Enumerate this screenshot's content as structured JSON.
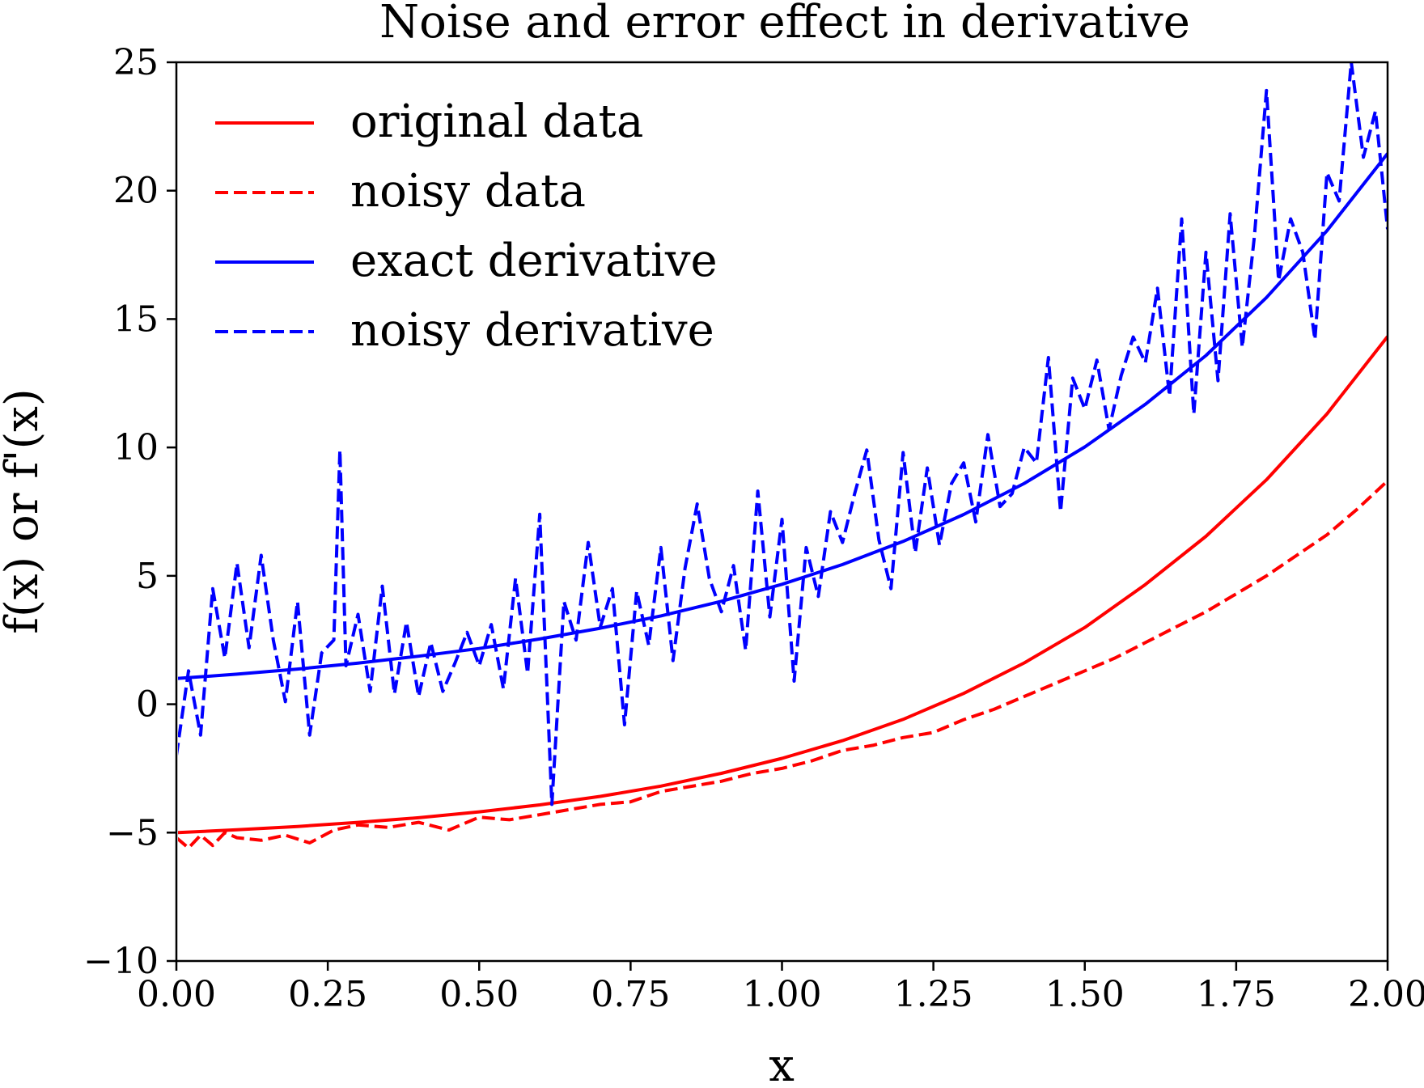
{
  "chart_data": {
    "type": "line",
    "title": "Noise and error effect in derivative",
    "xlabel": "x",
    "ylabel": "f(x) or f'(x)",
    "xlim": [
      0.0,
      2.0
    ],
    "ylim": [
      -10,
      25
    ],
    "xticks": [
      "0.00",
      "0.25",
      "0.50",
      "0.75",
      "1.00",
      "1.25",
      "1.50",
      "1.75",
      "2.00"
    ],
    "yticks": [
      "25",
      "20",
      "15",
      "10",
      "5",
      "0",
      "−5",
      "−10"
    ],
    "xtick_values": [
      0,
      0.25,
      0.5,
      0.75,
      1.0,
      1.25,
      1.5,
      1.75,
      2.0
    ],
    "ytick_values": [
      25,
      20,
      15,
      10,
      5,
      0,
      -5,
      -10
    ],
    "grid": false,
    "legend_position": "top-left",
    "series": [
      {
        "name": "original data",
        "color": "#ff0000",
        "style": "solid",
        "x": [
          0,
          0.1,
          0.2,
          0.3,
          0.4,
          0.5,
          0.6,
          0.7,
          0.8,
          0.9,
          1.0,
          1.1,
          1.2,
          1.3,
          1.4,
          1.5,
          1.6,
          1.7,
          1.8,
          1.9,
          2.0
        ],
        "y": [
          -5.0,
          -4.89,
          -4.76,
          -4.6,
          -4.42,
          -4.19,
          -3.92,
          -3.59,
          -3.19,
          -2.69,
          -2.11,
          -1.42,
          -0.59,
          0.42,
          1.61,
          2.99,
          4.66,
          6.54,
          8.74,
          11.31,
          14.32
        ]
      },
      {
        "name": "noisy data",
        "color": "#ff0000",
        "style": "dashed",
        "x": [
          0,
          0.02,
          0.04,
          0.06,
          0.08,
          0.1,
          0.14,
          0.18,
          0.22,
          0.26,
          0.3,
          0.35,
          0.4,
          0.45,
          0.5,
          0.55,
          0.6,
          0.65,
          0.7,
          0.75,
          0.8,
          0.85,
          0.9,
          0.95,
          1.0,
          1.05,
          1.1,
          1.15,
          1.2,
          1.25,
          1.3,
          1.35,
          1.4,
          1.45,
          1.5,
          1.55,
          1.6,
          1.65,
          1.7,
          1.75,
          1.8,
          1.85,
          1.9,
          1.95,
          2.0
        ],
        "y": [
          -5.2,
          -5.6,
          -5.1,
          -5.5,
          -5.0,
          -5.2,
          -5.3,
          -5.1,
          -5.4,
          -4.9,
          -4.7,
          -4.8,
          -4.6,
          -4.9,
          -4.4,
          -4.5,
          -4.3,
          -4.1,
          -3.9,
          -3.8,
          -3.4,
          -3.2,
          -3.0,
          -2.7,
          -2.5,
          -2.2,
          -1.8,
          -1.6,
          -1.3,
          -1.1,
          -0.6,
          -0.2,
          0.3,
          0.8,
          1.3,
          1.8,
          2.4,
          3.0,
          3.6,
          4.3,
          5.0,
          5.8,
          6.6,
          7.6,
          8.7
        ]
      },
      {
        "name": "exact derivative",
        "color": "#0000ff",
        "style": "solid",
        "x": [
          0,
          0.1,
          0.2,
          0.3,
          0.4,
          0.5,
          0.6,
          0.7,
          0.8,
          0.9,
          1.0,
          1.1,
          1.2,
          1.3,
          1.4,
          1.5,
          1.6,
          1.7,
          1.8,
          1.9,
          2.0
        ],
        "y": [
          1.0,
          1.17,
          1.37,
          1.6,
          1.87,
          2.17,
          2.54,
          2.96,
          3.44,
          4.01,
          4.67,
          5.44,
          6.34,
          7.39,
          8.6,
          10.02,
          11.68,
          13.58,
          15.84,
          18.44,
          21.45
        ]
      },
      {
        "name": "noisy derivative",
        "color": "#0000ff",
        "style": "dashed",
        "x": [
          0,
          0.02,
          0.04,
          0.06,
          0.08,
          0.1,
          0.12,
          0.14,
          0.16,
          0.18,
          0.2,
          0.22,
          0.24,
          0.26,
          0.27,
          0.28,
          0.3,
          0.32,
          0.34,
          0.36,
          0.38,
          0.4,
          0.42,
          0.44,
          0.46,
          0.48,
          0.5,
          0.52,
          0.54,
          0.56,
          0.58,
          0.6,
          0.62,
          0.64,
          0.66,
          0.68,
          0.7,
          0.72,
          0.74,
          0.76,
          0.78,
          0.8,
          0.82,
          0.84,
          0.86,
          0.88,
          0.9,
          0.92,
          0.94,
          0.96,
          0.98,
          1.0,
          1.02,
          1.04,
          1.06,
          1.08,
          1.1,
          1.12,
          1.14,
          1.16,
          1.18,
          1.2,
          1.22,
          1.24,
          1.26,
          1.28,
          1.3,
          1.32,
          1.34,
          1.36,
          1.38,
          1.4,
          1.42,
          1.44,
          1.46,
          1.48,
          1.5,
          1.52,
          1.54,
          1.56,
          1.58,
          1.6,
          1.62,
          1.64,
          1.66,
          1.68,
          1.7,
          1.72,
          1.74,
          1.76,
          1.78,
          1.8,
          1.82,
          1.84,
          1.86,
          1.88,
          1.9,
          1.92,
          1.94,
          1.96,
          1.98,
          2.0
        ],
        "y": [
          -2.0,
          1.3,
          -1.2,
          4.5,
          1.8,
          5.5,
          2.2,
          5.8,
          2.5,
          0.1,
          4.0,
          -1.2,
          2.0,
          2.5,
          9.9,
          1.5,
          3.5,
          0.5,
          4.6,
          0.4,
          3.2,
          0.3,
          2.4,
          0.5,
          1.6,
          2.8,
          1.5,
          3.1,
          0.6,
          4.9,
          1.2,
          7.4,
          -3.9,
          4.0,
          2.5,
          6.3,
          3.0,
          4.5,
          -0.8,
          4.4,
          2.3,
          6.1,
          1.7,
          5.3,
          7.8,
          4.9,
          3.6,
          5.4,
          2.1,
          8.3,
          3.4,
          7.2,
          0.9,
          6.1,
          4.2,
          7.5,
          6.3,
          8.2,
          9.9,
          6.4,
          4.5,
          9.8,
          5.9,
          9.2,
          6.2,
          8.6,
          9.4,
          7.1,
          10.5,
          7.7,
          8.2,
          10.0,
          9.4,
          13.5,
          7.5,
          12.7,
          11.5,
          13.4,
          10.7,
          12.8,
          14.3,
          13.3,
          16.2,
          12.0,
          18.9,
          11.3,
          17.6,
          12.6,
          19.1,
          13.9,
          18.2,
          23.9,
          16.5,
          18.9,
          17.6,
          14.2,
          20.7,
          19.6,
          25.0,
          21.3,
          23.1,
          18.5
        ]
      }
    ]
  }
}
